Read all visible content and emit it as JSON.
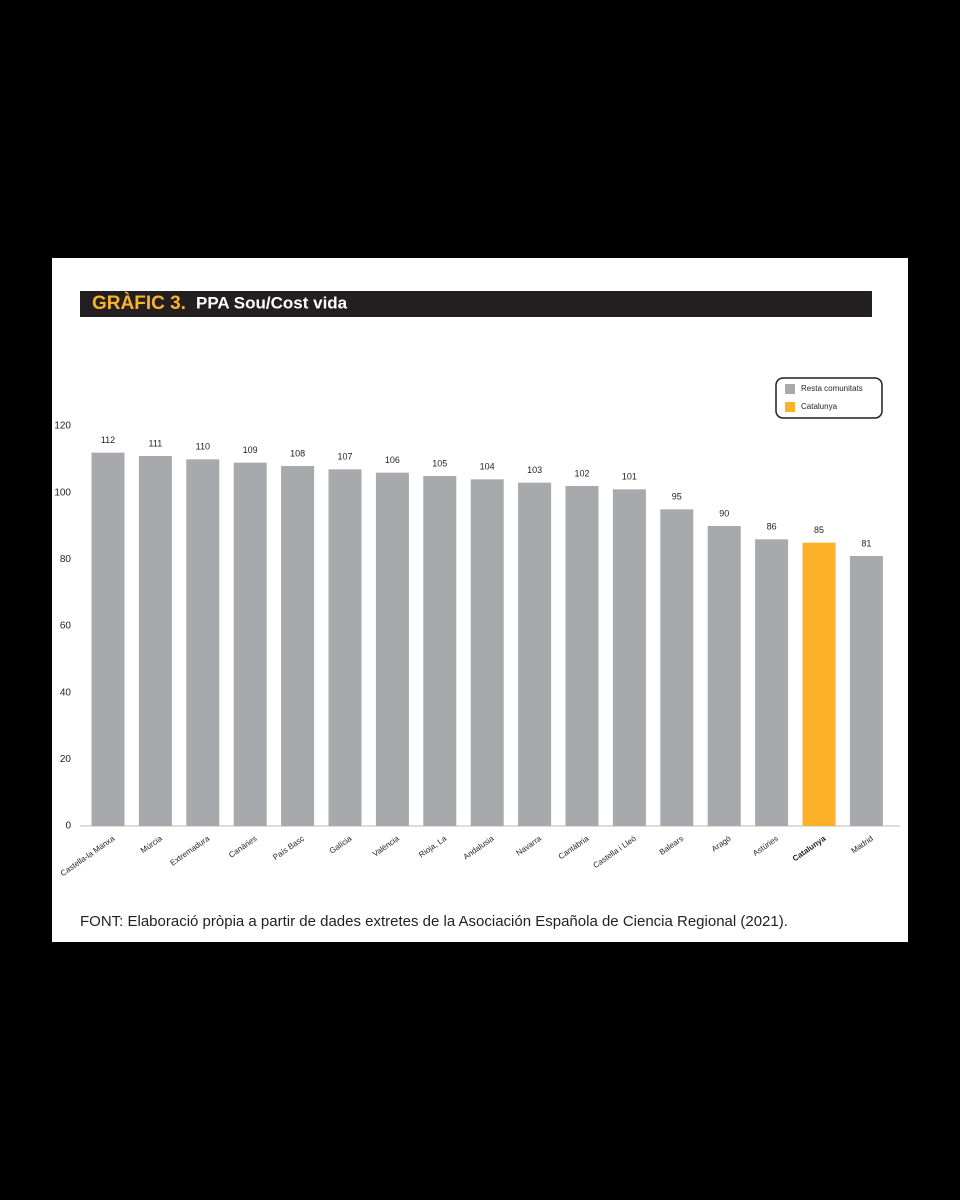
{
  "chart_data": {
    "type": "bar",
    "title_prefix": "GRÀFIC 3.",
    "title": "PPA Sou/Cost vida",
    "categories": [
      "Castella-la Manxa",
      "Múrcia",
      "Extremadura",
      "Canàries",
      "País Basc",
      "Galícia",
      "València",
      "Rioja, La",
      "Andalusia",
      "Navarra",
      "Cantàbria",
      "Castella i Lleó",
      "Balears",
      "Aragó",
      "Astúries",
      "Catalunya",
      "Madrid"
    ],
    "values": [
      112,
      111,
      110,
      109,
      108,
      107,
      106,
      105,
      104,
      103,
      102,
      101,
      95,
      90,
      86,
      85,
      81
    ],
    "colors": [
      "#a7a9ac",
      "#a7a9ac",
      "#a7a9ac",
      "#a7a9ac",
      "#a7a9ac",
      "#a7a9ac",
      "#a7a9ac",
      "#a7a9ac",
      "#a7a9ac",
      "#a7a9ac",
      "#a7a9ac",
      "#a7a9ac",
      "#a7a9ac",
      "#a7a9ac",
      "#a7a9ac",
      "#fbb12a",
      "#a7a9ac"
    ],
    "legend": [
      {
        "name": "Resta comunitats",
        "color": "#a7a9ac"
      },
      {
        "name": "Catalunya",
        "color": "#fbb12a"
      }
    ],
    "legend_position": "upper right",
    "ylim": [
      0,
      120
    ],
    "yticks": [
      0,
      20,
      40,
      60,
      80,
      100,
      120
    ],
    "grid": false,
    "source": "FONT: Elaboració pròpia a partir de dades extretes de la Asociación Española de Ciencia Regional (2021)."
  }
}
